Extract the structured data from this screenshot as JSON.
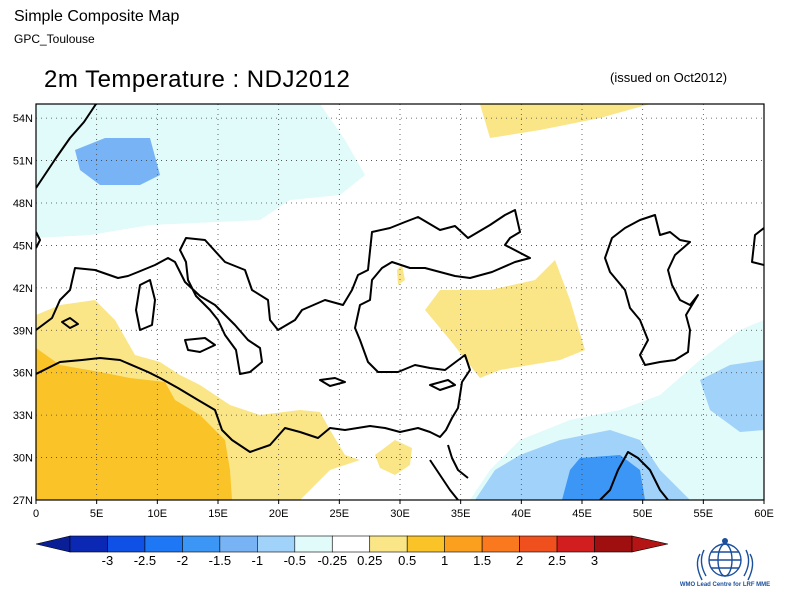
{
  "header": {
    "title": "Simple Composite Map",
    "subtitle": "GPC_Toulouse"
  },
  "map": {
    "title": "2m Temperature : NDJ2012",
    "issued": "(issued on Oct2012)",
    "lon_range": [
      0,
      60
    ],
    "lat_range": [
      27,
      55
    ],
    "lon_labels": [
      "0",
      "5E",
      "10E",
      "15E",
      "20E",
      "25E",
      "30E",
      "35E",
      "40E",
      "45E",
      "50E",
      "55E",
      "60E"
    ],
    "lat_labels": [
      "27N",
      "30N",
      "33N",
      "36N",
      "39N",
      "42N",
      "45N",
      "48N",
      "51N",
      "54N"
    ],
    "grid": "dotted"
  },
  "colorbar": {
    "labels": [
      "-3",
      "-2.5",
      "-2",
      "-1.5",
      "-1",
      "-0.5",
      "-0.25",
      "0.25",
      "0.5",
      "1",
      "1.5",
      "2",
      "2.5",
      "3"
    ],
    "colors": [
      "#0a28b4",
      "#0f50e6",
      "#1e78f5",
      "#3c96f5",
      "#78b4f5",
      "#a0d2fa",
      "#e1fafa",
      "#ffffff",
      "#fae687",
      "#fac328",
      "#faa01e",
      "#fa781e",
      "#f0501e",
      "#d21e1e",
      "#a00f0f"
    ],
    "end_left_color": "#0a1e96",
    "end_right_color": "#b41414"
  },
  "logo": {
    "text": "WMO Lead Centre for LRF MME",
    "icon": "wmo-emblem-icon"
  },
  "anomaly_colors": {
    "light_cyan": "#e1fafa",
    "light_blue": "#a0d2fa",
    "mid_blue": "#78b4f5",
    "blue": "#3c96f5",
    "light_yellow": "#fae687",
    "yellow": "#fac328"
  }
}
